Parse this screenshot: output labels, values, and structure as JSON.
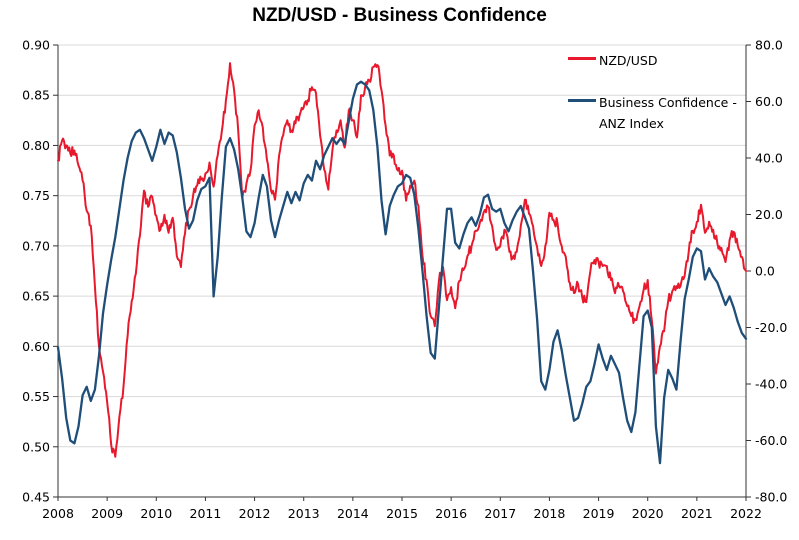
{
  "title": "NZD/USD - Business Confidence",
  "legend": [
    {
      "label": "NZD/USD",
      "color": "#e8192d"
    },
    {
      "label": "Business Confidence - ANZ Index",
      "color": "#1f4e79"
    }
  ],
  "chart_data": {
    "type": "line",
    "title": "NZD/USD - Business Confidence",
    "x_axis": {
      "start_year": 2008,
      "end_year": 2022,
      "interval_months": 1,
      "tick_labels": [
        "2008",
        "2009",
        "2010",
        "2011",
        "2012",
        "2013",
        "2014",
        "2015",
        "2016",
        "2017",
        "2018",
        "2019",
        "2020",
        "2021",
        "2022"
      ]
    },
    "left_axis": {
      "range": [
        0.45,
        0.9
      ],
      "tick_step": 0.05,
      "tick_labels": [
        "0.90",
        "0.85",
        "0.80",
        "0.75",
        "0.70",
        "0.65",
        "0.60",
        "0.55",
        "0.50",
        "0.45"
      ],
      "series": "NZD/USD"
    },
    "right_axis": {
      "range": [
        -80,
        80
      ],
      "tick_step": 20,
      "tick_labels": [
        "80.0",
        "60.0",
        "40.0",
        "20.0",
        "0.0",
        "-20.0",
        "-40.0",
        "-60.0",
        "-80.0"
      ],
      "series": "Business Confidence - ANZ Index"
    },
    "grid": {
      "horizontal": true,
      "vertical": false,
      "color": "#d9d9d9"
    },
    "legend_position": "top-right-inside",
    "series": [
      {
        "name": "NZD/USD",
        "axis": "left",
        "color": "#e8192d",
        "line_width": 2,
        "monthly_values": [
          0.785,
          0.805,
          0.8,
          0.792,
          0.795,
          0.78,
          0.765,
          0.735,
          0.72,
          0.66,
          0.6,
          0.575,
          0.545,
          0.502,
          0.49,
          0.53,
          0.56,
          0.61,
          0.645,
          0.672,
          0.71,
          0.755,
          0.739,
          0.749,
          0.73,
          0.716,
          0.731,
          0.713,
          0.728,
          0.69,
          0.679,
          0.712,
          0.736,
          0.75,
          0.76,
          0.766,
          0.772,
          0.783,
          0.759,
          0.79,
          0.814,
          0.845,
          0.882,
          0.855,
          0.815,
          0.748,
          0.762,
          0.775,
          0.82,
          0.835,
          0.818,
          0.786,
          0.755,
          0.746,
          0.79,
          0.81,
          0.825,
          0.815,
          0.822,
          0.83,
          0.838,
          0.845,
          0.858,
          0.852,
          0.81,
          0.776,
          0.756,
          0.795,
          0.815,
          0.825,
          0.798,
          0.835,
          0.825,
          0.808,
          0.85,
          0.858,
          0.865,
          0.878,
          0.88,
          0.855,
          0.82,
          0.79,
          0.79,
          0.775,
          0.775,
          0.745,
          0.76,
          0.765,
          0.74,
          0.69,
          0.666,
          0.63,
          0.62,
          0.665,
          0.679,
          0.646,
          0.659,
          0.638,
          0.665,
          0.676,
          0.69,
          0.7,
          0.715,
          0.723,
          0.734,
          0.739,
          0.72,
          0.696,
          0.7,
          0.716,
          0.7,
          0.688,
          0.694,
          0.72,
          0.746,
          0.732,
          0.72,
          0.699,
          0.68,
          0.7,
          0.733,
          0.726,
          0.722,
          0.7,
          0.689,
          0.663,
          0.653,
          0.662,
          0.649,
          0.644,
          0.675,
          0.686,
          0.684,
          0.68,
          0.68,
          0.666,
          0.653,
          0.66,
          0.655,
          0.64,
          0.63,
          0.626,
          0.64,
          0.656,
          0.666,
          0.626,
          0.573,
          0.6,
          0.615,
          0.645,
          0.655,
          0.66,
          0.66,
          0.67,
          0.694,
          0.715,
          0.724,
          0.741,
          0.713,
          0.724,
          0.716,
          0.703,
          0.698,
          0.684,
          0.706,
          0.714,
          0.7,
          0.689,
          0.675
        ]
      },
      {
        "name": "Business Confidence - ANZ Index",
        "axis": "right",
        "color": "#1f4e79",
        "line_width": 2.3,
        "monthly_values": [
          -27,
          -38,
          -52,
          -60,
          -61,
          -55,
          -44,
          -41,
          -46,
          -42,
          -30,
          -15,
          -5,
          4,
          12,
          22,
          32,
          40,
          46,
          49,
          50,
          47,
          43,
          39,
          44,
          50,
          45,
          49,
          48,
          42,
          33,
          22,
          15,
          18,
          25,
          29,
          30,
          33,
          -9,
          5,
          26,
          44,
          47,
          43,
          36,
          26,
          14,
          12,
          17,
          26,
          34,
          30,
          18,
          12,
          18,
          23,
          28,
          24,
          28,
          25,
          31,
          34,
          32,
          39,
          36,
          41,
          44,
          47,
          45,
          47,
          45,
          53,
          61,
          66,
          67,
          66,
          64,
          57,
          44,
          25,
          13,
          23,
          27,
          30,
          31,
          34,
          33,
          27,
          15,
          0,
          -16,
          -29,
          -31,
          -13,
          5,
          22,
          22,
          10,
          8,
          13,
          17,
          19,
          16,
          20,
          26,
          27,
          22,
          21,
          22,
          17,
          14,
          18,
          21,
          23,
          19,
          15,
          0,
          -17,
          -39,
          -42,
          -35,
          -25,
          -21,
          -28,
          -37,
          -45,
          -53,
          -52,
          -47,
          -41,
          -39,
          -33,
          -26,
          -31,
          -35,
          -30,
          -33,
          -36,
          -45,
          -53,
          -57,
          -50,
          -33,
          -16,
          -14,
          -20,
          -55,
          -68,
          -45,
          -35,
          -38,
          -42,
          -25,
          -10,
          -3,
          5,
          8,
          7,
          -3,
          1,
          -2,
          -4,
          -8,
          -12,
          -9,
          -13,
          -18,
          -22,
          -24
        ]
      }
    ],
    "style": {
      "axis_color": "#333333",
      "text_color": "#000000",
      "grid_color": "#d9d9d9",
      "nzdusd_noise_amplitude": 0.005,
      "noise_seed": 11,
      "noise_steps_per_month": 4
    }
  }
}
